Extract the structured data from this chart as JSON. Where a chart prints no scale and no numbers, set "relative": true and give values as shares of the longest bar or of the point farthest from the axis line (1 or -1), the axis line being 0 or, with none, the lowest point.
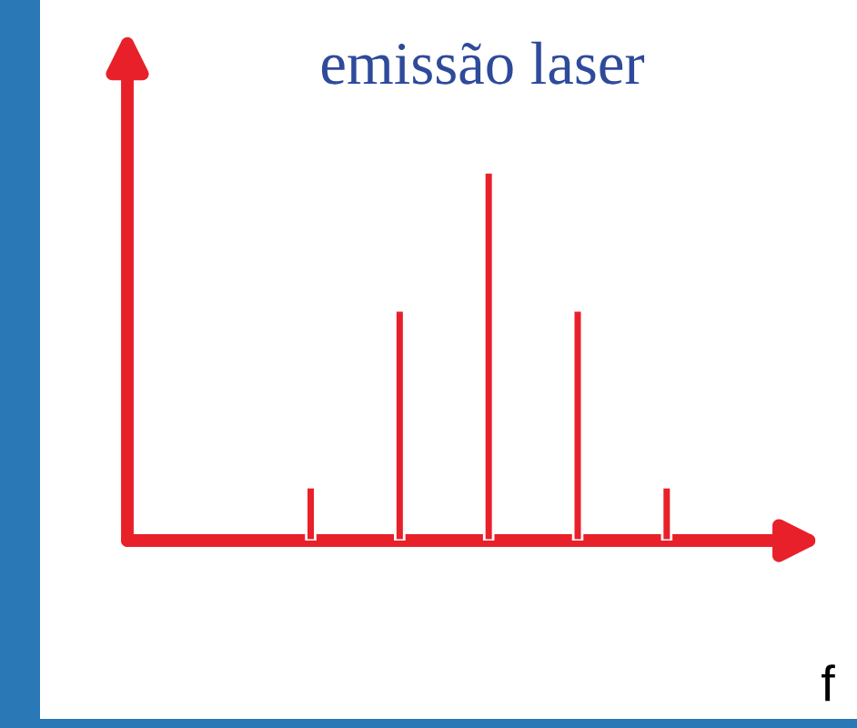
{
  "chart_data": {
    "type": "bar",
    "title": "emissão laser",
    "xlabel": "f",
    "relative": true,
    "categories": [
      null,
      null,
      null,
      null,
      null
    ],
    "series": [
      {
        "color": "#e8202a",
        "values": [
          0.145,
          0.625,
          1,
          0.625,
          0.145
        ]
      }
    ],
    "grid": false,
    "legend": false
  }
}
